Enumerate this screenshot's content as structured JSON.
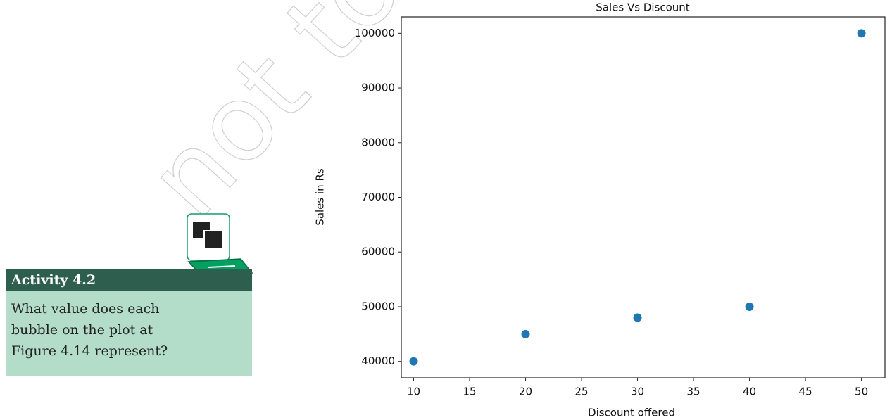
{
  "chart_data": {
    "type": "scatter",
    "title": "Sales Vs Discount",
    "x_label": "Discount offered",
    "y_label": "Sales in Rs",
    "x": [
      10,
      20,
      30,
      40,
      50
    ],
    "values": [
      40000,
      45000,
      48000,
      50000,
      100000
    ],
    "color": "#1f77b4",
    "xlim": [
      8.9,
      52.1
    ],
    "xticks": [
      10,
      15,
      20,
      25,
      30,
      35,
      40,
      45,
      50
    ],
    "ylim": [
      37000,
      103000
    ],
    "yticks": [
      40000,
      50000,
      60000,
      70000,
      80000,
      90000,
      100000
    ],
    "grid": false
  },
  "activity": {
    "title": "Activity 4.2",
    "lines": [
      "What value does each",
      "bubble on the plot at",
      "Figure 4.14 represent?"
    ]
  },
  "watermark": "not to be"
}
